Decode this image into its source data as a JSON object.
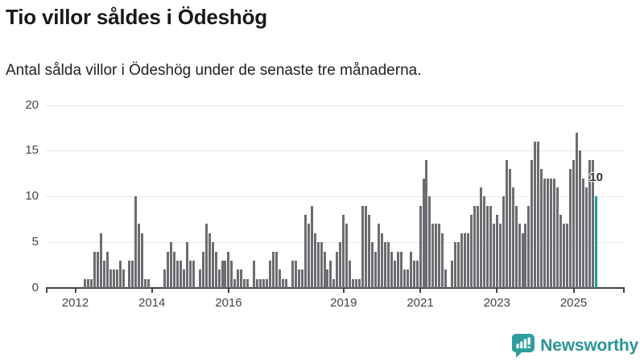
{
  "header": {
    "title": "Tio villor såldes i Ödeshög",
    "subtitle": "Antal sålda villor i Ödeshög under de senaste tre månaderna."
  },
  "chart_data": {
    "type": "bar",
    "title": "Tio villor såldes i Ödeshög",
    "subtitle": "Antal sålda villor i Ödeshög under de senaste tre månaderna.",
    "ylabel": "",
    "xlabel": "",
    "ylim": [
      0,
      20
    ],
    "yticks": [
      0,
      5,
      10,
      15,
      20
    ],
    "year_ticks": [
      2012,
      2014,
      2016,
      2019,
      2021,
      2023,
      2025
    ],
    "grid": true,
    "legend": "none",
    "frequency": "monthly",
    "start_month": "2012-04",
    "end_month": "2025-08",
    "values": [
      1,
      1,
      1,
      4,
      4,
      6,
      3,
      4,
      2,
      2,
      2,
      3,
      2,
      0,
      3,
      3,
      10,
      7,
      6,
      1,
      1,
      0,
      0,
      0,
      0,
      2,
      4,
      5,
      4,
      3,
      3,
      2,
      5,
      3,
      3,
      0,
      2,
      4,
      7,
      6,
      5,
      4,
      2,
      3,
      3,
      4,
      3,
      1,
      2,
      2,
      1,
      1,
      0,
      3,
      1,
      1,
      1,
      1,
      3,
      4,
      4,
      2,
      1,
      1,
      0,
      3,
      3,
      2,
      2,
      8,
      7,
      9,
      6,
      5,
      5,
      4,
      2,
      3,
      1,
      4,
      5,
      8,
      7,
      3,
      1,
      1,
      1,
      9,
      9,
      8,
      5,
      4,
      7,
      6,
      5,
      5,
      4,
      3,
      4,
      4,
      2,
      2,
      4,
      3,
      3,
      9,
      12,
      14,
      10,
      7,
      7,
      7,
      6,
      2,
      0,
      3,
      5,
      5,
      6,
      6,
      6,
      8,
      9,
      9,
      11,
      10,
      9,
      9,
      7,
      8,
      7,
      10,
      14,
      13,
      11,
      9,
      7,
      6,
      7,
      9,
      14,
      16,
      16,
      13,
      12,
      12,
      12,
      12,
      11,
      8,
      7,
      7,
      13,
      14,
      17,
      15,
      12,
      11,
      14,
      14,
      10
    ],
    "highlight_last": true,
    "last_value_label": "10",
    "bar_color": "#6c6c71",
    "highlight_color": "#1d9c9c",
    "gridline_color": "#e7e7e7",
    "axis_color": "#454545"
  },
  "branding": {
    "logo_text": "Newsworthy",
    "logo_color": "#2f9e9f",
    "logo_text_color": "#2a9596"
  }
}
